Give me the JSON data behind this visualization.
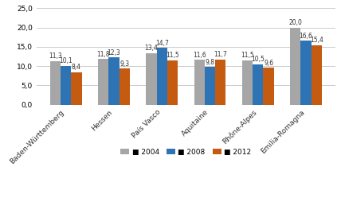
{
  "categories": [
    "Baden-Württemberg",
    "Hessen",
    "País Vasco",
    "Aquitaine",
    "Rhône-Alpes",
    "Emilia-Romagna"
  ],
  "series": {
    "2004": [
      11.3,
      11.8,
      13.4,
      11.6,
      11.5,
      20.0
    ],
    "2008": [
      10.1,
      12.3,
      14.7,
      9.8,
      10.5,
      16.6
    ],
    "2012": [
      8.4,
      9.3,
      11.5,
      11.7,
      9.6,
      15.4
    ]
  },
  "colors": {
    "2004": "#a6a6a6",
    "2008": "#2e74b5",
    "2012": "#c55a11"
  },
  "ylim": [
    0,
    25
  ],
  "yticks": [
    0.0,
    5.0,
    10.0,
    15.0,
    20.0,
    25.0
  ],
  "bar_width": 0.22,
  "legend_labels": [
    "2004",
    "2008",
    "2012"
  ],
  "value_fontsize": 5.5,
  "label_fontsize": 6.5,
  "background_color": "#ffffff",
  "grid_color": "#cccccc"
}
